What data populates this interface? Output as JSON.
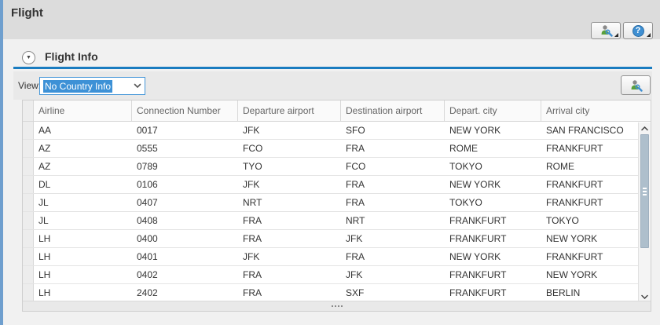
{
  "app": {
    "title": "Flight"
  },
  "titlebar": {
    "personalize_tooltip": "Personalize",
    "help_glyph": "?"
  },
  "tray": {
    "title": "Flight Info",
    "collapse_glyph": "▼"
  },
  "view_toolbar": {
    "label": "View:",
    "dropdown_value": "No Country Info"
  },
  "table": {
    "columns": [
      "Airline",
      "Connection Number",
      "Departure airport",
      "Destination airport",
      "Depart. city",
      "Arrival city"
    ],
    "rows": [
      [
        "AA",
        "0017",
        "JFK",
        "SFO",
        "NEW YORK",
        "SAN FRANCISCO"
      ],
      [
        "AZ",
        "0555",
        "FCO",
        "FRA",
        "ROME",
        "FRANKFURT"
      ],
      [
        "AZ",
        "0789",
        "TYO",
        "FCO",
        "TOKYO",
        "ROME"
      ],
      [
        "DL",
        "0106",
        "JFK",
        "FRA",
        "NEW YORK",
        "FRANKFURT"
      ],
      [
        "JL",
        "0407",
        "NRT",
        "FRA",
        "TOKYO",
        "FRANKFURT"
      ],
      [
        "JL",
        "0408",
        "FRA",
        "NRT",
        "FRANKFURT",
        "TOKYO"
      ],
      [
        "LH",
        "0400",
        "FRA",
        "JFK",
        "FRANKFURT",
        "NEW YORK"
      ],
      [
        "LH",
        "0401",
        "JFK",
        "FRA",
        "NEW YORK",
        "FRANKFURT"
      ],
      [
        "LH",
        "0402",
        "FRA",
        "JFK",
        "FRANKFURT",
        "NEW YORK"
      ],
      [
        "LH",
        "2402",
        "FRA",
        "SXF",
        "FRANKFURT",
        "BERLIN"
      ]
    ]
  },
  "icons": {
    "personalize": "person-wrench-icon",
    "help": "question-mark-icon",
    "tray_toggle": "chevron-down-circle-icon",
    "dropdown": "chevron-down-icon",
    "scroll_up": "chevron-up-icon",
    "scroll_down": "chevron-down-icon",
    "resize_grip": "dots-grip-icon"
  },
  "colors": {
    "accent_blue": "#1a7cc0",
    "selection_blue": "#3d91d6",
    "left_strip": "#6f9fce",
    "titlebar_bg": "#dcdcdc",
    "toolbar_bg": "#e9e9e9",
    "scroll_thumb": "#aebfcc",
    "icon_green": "#5aa03c",
    "icon_blue": "#3f8fd2"
  }
}
